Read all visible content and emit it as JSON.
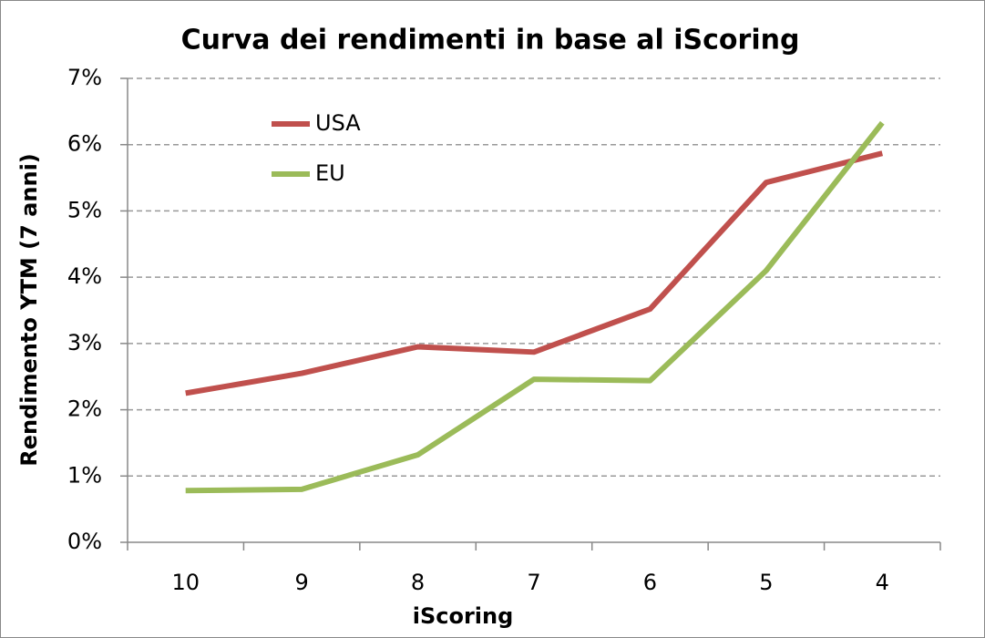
{
  "chart_data": {
    "type": "line",
    "title": "Curva dei rendimenti in base al iScoring",
    "x_label": "iScoring",
    "y_label": "Rendimento YTM (7 anni)",
    "categories": [
      "10",
      "9",
      "8",
      "7",
      "6",
      "5",
      "4"
    ],
    "series": [
      {
        "name": "USA",
        "color": "#c0504d",
        "values": [
          2.25,
          2.55,
          2.95,
          2.87,
          3.52,
          5.43,
          5.87
        ]
      },
      {
        "name": "EU",
        "color": "#9bbb59",
        "values": [
          0.78,
          0.8,
          1.32,
          2.46,
          2.44,
          4.1,
          6.33
        ]
      }
    ],
    "ylim": [
      0,
      7
    ],
    "yticks": [
      {
        "value": 0,
        "label": "0%"
      },
      {
        "value": 1,
        "label": "1%"
      },
      {
        "value": 2,
        "label": "2%"
      },
      {
        "value": 3,
        "label": "3%"
      },
      {
        "value": 4,
        "label": "4%"
      },
      {
        "value": 5,
        "label": "5%"
      },
      {
        "value": 6,
        "label": "6%"
      },
      {
        "value": 7,
        "label": "7%"
      }
    ],
    "grid": true,
    "legend": "upper-left"
  }
}
